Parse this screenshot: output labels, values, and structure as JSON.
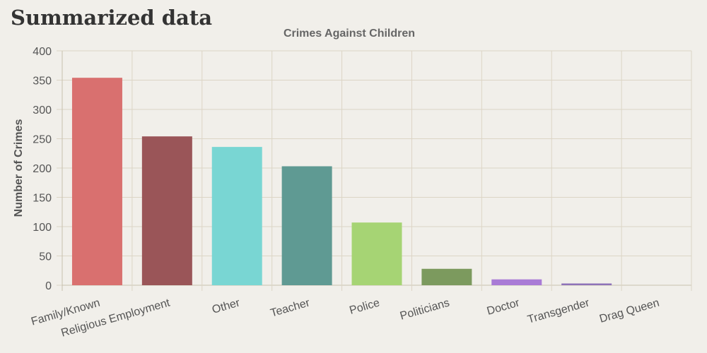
{
  "page": {
    "title": "Summarized data"
  },
  "chart_data": {
    "type": "bar",
    "title": "Crimes Against Children",
    "xlabel": "",
    "ylabel": "Number of Crimes",
    "ylim": [
      0,
      400
    ],
    "yticks": [
      0,
      50,
      100,
      150,
      200,
      250,
      300,
      350,
      400
    ],
    "grid": true,
    "legend": "none",
    "categories": [
      "Family/Known",
      "Religious Employment",
      "Other",
      "Teacher",
      "Police",
      "Politicians",
      "Doctor",
      "Transgender",
      "Drag Queen"
    ],
    "values": [
      354,
      254,
      236,
      203,
      107,
      28,
      10,
      3,
      0
    ],
    "colors": [
      "#d9706f",
      "#9a5558",
      "#79d6d3",
      "#5f9a93",
      "#a6d474",
      "#7c9a5e",
      "#a97bd6",
      "#8e73b8",
      "#9a8fb0"
    ]
  }
}
